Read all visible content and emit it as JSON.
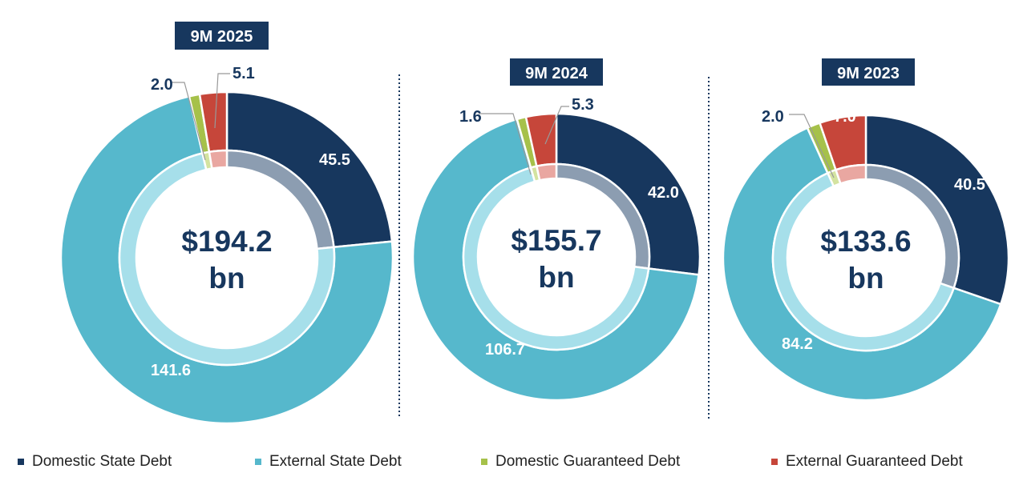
{
  "colors": {
    "domestic_state": "#17375e",
    "external_state": "#56b8cc",
    "domestic_guaranteed": "#a6c14a",
    "external_guaranteed": "#c6463a",
    "domestic_state_light": "#8c9db1",
    "external_state_light": "#a6dfea",
    "domestic_guaranteed_light": "#d4e3a0",
    "external_guaranteed_light": "#e9a7a1",
    "title_bg": "#17375e"
  },
  "chart_data": [
    {
      "type": "pie",
      "variant": "donut",
      "title": "9M 2025",
      "center_value": "$194.2",
      "center_unit": "bn",
      "categories": [
        "Domestic State Debt",
        "External State Debt",
        "Domestic Guaranteed Debt",
        "External Guaranteed Debt"
      ],
      "values": [
        45.5,
        141.6,
        2.0,
        5.1
      ],
      "labels": [
        "45.5",
        "141.6",
        "2.0",
        "5.1"
      ]
    },
    {
      "type": "pie",
      "variant": "donut",
      "title": "9M 2024",
      "center_value": "$155.7",
      "center_unit": "bn",
      "categories": [
        "Domestic State Debt",
        "External State Debt",
        "Domestic Guaranteed Debt",
        "External Guaranteed Debt"
      ],
      "values": [
        42.0,
        106.7,
        1.6,
        5.3
      ],
      "labels": [
        "42.0",
        "106.7",
        "1.6",
        "5.3"
      ]
    },
    {
      "type": "pie",
      "variant": "donut",
      "title": "9M 2023",
      "center_value": "$133.6",
      "center_unit": "bn",
      "categories": [
        "Domestic State Debt",
        "External State Debt",
        "Domestic Guaranteed Debt",
        "External Guaranteed Debt"
      ],
      "values": [
        40.5,
        84.2,
        2.0,
        7.0
      ],
      "labels": [
        "40.5",
        "84.2",
        "2.0",
        "7.0"
      ]
    }
  ],
  "legend": [
    "Domestic State Debt",
    "External State Debt",
    "Domestic Guaranteed Debt",
    "External Guaranteed Debt"
  ]
}
